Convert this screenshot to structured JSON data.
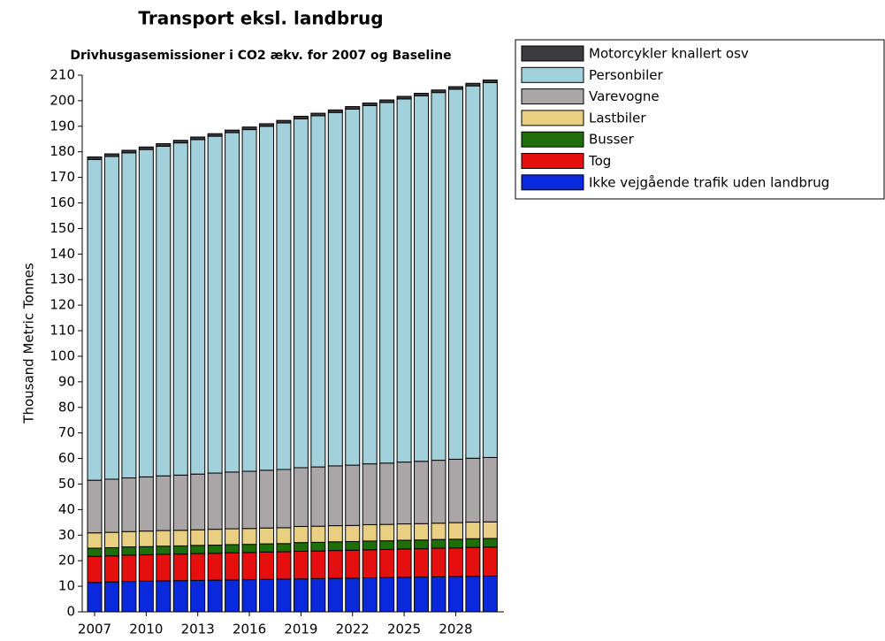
{
  "chart_data": {
    "type": "stacked_bar",
    "title": "Transport eksl. landbrug",
    "subtitle": "Drivhusgasemissioner i CO2 ækv. for 2007 og Baseline",
    "y_label": "Thousand Metric Tonnes",
    "categories": [
      "2007",
      null,
      null,
      "2010",
      null,
      null,
      "2013",
      null,
      null,
      "2016",
      null,
      null,
      "2019",
      null,
      null,
      "2022",
      null,
      null,
      "2025",
      null,
      null,
      "2028",
      null,
      null
    ],
    "ylim": [
      0,
      210
    ],
    "yticks": [
      0,
      10,
      20,
      30,
      40,
      50,
      60,
      70,
      80,
      90,
      100,
      110,
      120,
      130,
      140,
      150,
      160,
      170,
      180,
      190,
      200,
      210
    ],
    "series": [
      {
        "name": "Ikke vejgående trafik uden landbrug",
        "color": "#0a28dc",
        "values": [
          11.5,
          11.7,
          11.9,
          12.0,
          12.1,
          12.2,
          12.3,
          12.4,
          12.5,
          12.6,
          12.7,
          12.8,
          12.9,
          13.0,
          13.1,
          13.2,
          13.3,
          13.4,
          13.5,
          13.6,
          13.7,
          13.8,
          13.9,
          14.0
        ]
      },
      {
        "name": "Tog",
        "color": "#e60f0f",
        "values": [
          10.2,
          10.2,
          10.3,
          10.3,
          10.4,
          10.4,
          10.5,
          10.5,
          10.6,
          10.6,
          10.7,
          10.7,
          10.8,
          10.8,
          10.9,
          10.9,
          11.0,
          11.0,
          11.1,
          11.1,
          11.2,
          11.2,
          11.3,
          11.3
        ]
      },
      {
        "name": "Busser",
        "color": "#1e6e0a",
        "values": [
          3.2,
          3.2,
          3.2,
          3.2,
          3.2,
          3.2,
          3.2,
          3.2,
          3.2,
          3.2,
          3.2,
          3.2,
          3.4,
          3.4,
          3.4,
          3.4,
          3.4,
          3.4,
          3.4,
          3.4,
          3.4,
          3.4,
          3.4,
          3.4
        ]
      },
      {
        "name": "Lastbiler",
        "color": "#e8cf82",
        "values": [
          6.0,
          6.0,
          6.0,
          6.1,
          6.1,
          6.1,
          6.1,
          6.2,
          6.2,
          6.2,
          6.2,
          6.2,
          6.3,
          6.3,
          6.3,
          6.3,
          6.4,
          6.4,
          6.4,
          6.4,
          6.4,
          6.5,
          6.5,
          6.5
        ]
      },
      {
        "name": "Varevogne",
        "color": "#aaa6a8",
        "values": [
          20.6,
          20.8,
          21.0,
          21.2,
          21.4,
          21.6,
          21.8,
          22.0,
          22.2,
          22.4,
          22.6,
          22.8,
          23.0,
          23.2,
          23.4,
          23.6,
          23.8,
          24.0,
          24.2,
          24.4,
          24.6,
          24.8,
          25.0,
          25.2
        ]
      },
      {
        "name": "Personbiler",
        "color": "#a2d1dc",
        "values": [
          125.5,
          126.3,
          127.2,
          128.1,
          129.0,
          130.0,
          130.9,
          131.8,
          132.8,
          133.7,
          134.6,
          135.6,
          136.5,
          137.4,
          138.3,
          139.3,
          140.2,
          141.1,
          142.1,
          143.0,
          143.9,
          144.8,
          145.7,
          146.7
        ]
      },
      {
        "name": "Motorcykler knallert osv",
        "color": "#3c3c40",
        "values": [
          1.0,
          1.0,
          1.0,
          1.0,
          1.0,
          1.0,
          1.0,
          1.0,
          1.0,
          1.0,
          1.0,
          1.0,
          1.0,
          1.0,
          1.0,
          1.0,
          1.0,
          1.0,
          1.0,
          1.0,
          1.0,
          1.0,
          1.0,
          1.0
        ]
      }
    ]
  }
}
